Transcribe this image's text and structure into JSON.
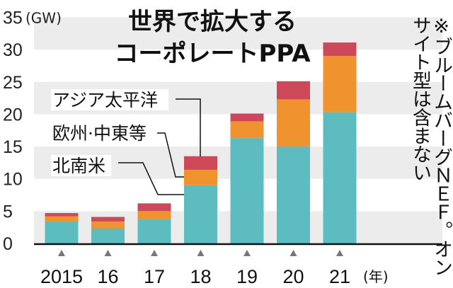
{
  "chart_data": {
    "type": "bar",
    "stacked": true,
    "title": "世界で拡大する\nコーポレートPPA",
    "title_lines": [
      "世界で拡大する",
      "コーポレートPPA"
    ],
    "ylabel": "(GW)",
    "xlabel": "(年)",
    "categories": [
      "2015",
      "16",
      "17",
      "18",
      "19",
      "20",
      "21"
    ],
    "ylim": [
      0,
      35
    ],
    "yticks": [
      0,
      5,
      10,
      15,
      20,
      25,
      30,
      35
    ],
    "grid": "alternating horizontal bands",
    "series": [
      {
        "name": "北南米",
        "color": "#5dbcbf",
        "values": [
          3.4,
          2.3,
          3.8,
          9.0,
          16.3,
          15.0,
          20.3
        ]
      },
      {
        "name": "欧州·中東等",
        "color": "#f0922e",
        "values": [
          0.8,
          1.1,
          1.2,
          2.4,
          2.6,
          7.3,
          8.7
        ]
      },
      {
        "name": "アジア太平洋",
        "color": "#cd4858",
        "values": [
          0.5,
          0.7,
          1.2,
          2.1,
          1.2,
          2.8,
          2.1
        ]
      }
    ],
    "note": "※ブルームバーグＮＥＦ。オンサイト型は含まない"
  }
}
